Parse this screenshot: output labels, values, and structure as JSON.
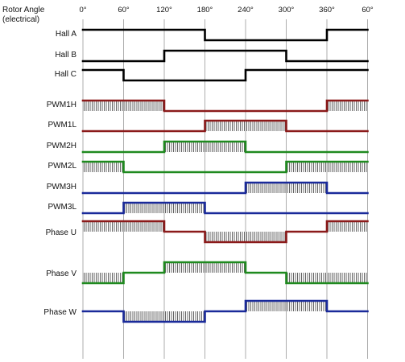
{
  "header": {
    "title_line1": "Rotor Angle",
    "title_line2": "(electrical)"
  },
  "angles": [
    "0°",
    "60°",
    "120°",
    "180°",
    "240°",
    "300°",
    "360°",
    "60°"
  ],
  "colors": {
    "hall": "#000000",
    "phase_u": "#8b1a1a",
    "phase_v": "#1f8a1f",
    "phase_w": "#1a2a9a",
    "grid": "#9a9a9a"
  },
  "signals": [
    {
      "label": "Hall A",
      "color_key": "hall",
      "levels": [
        1,
        1,
        1,
        0,
        0,
        0,
        1
      ],
      "pwm": [
        false,
        false,
        false,
        false,
        false,
        false,
        false
      ]
    },
    {
      "label": "Hall B",
      "color_key": "hall",
      "levels": [
        0,
        0,
        1,
        1,
        1,
        0,
        0
      ],
      "pwm": [
        false,
        false,
        false,
        false,
        false,
        false,
        false
      ]
    },
    {
      "label": "Hall C",
      "color_key": "hall",
      "levels": [
        1,
        0,
        0,
        0,
        1,
        1,
        1
      ],
      "pwm": [
        false,
        false,
        false,
        false,
        false,
        false,
        false
      ]
    },
    {
      "label": "PWM1H",
      "color_key": "phase_u",
      "levels": [
        1,
        1,
        0,
        0,
        0,
        0,
        1
      ],
      "pwm": [
        true,
        true,
        false,
        false,
        false,
        false,
        true
      ]
    },
    {
      "label": "PWM1L",
      "color_key": "phase_u",
      "levels": [
        0,
        0,
        0,
        1,
        1,
        0,
        0
      ],
      "pwm": [
        false,
        false,
        false,
        true,
        true,
        false,
        false
      ]
    },
    {
      "label": "PWM2H",
      "color_key": "phase_v",
      "levels": [
        0,
        0,
        1,
        1,
        0,
        0,
        0
      ],
      "pwm": [
        false,
        false,
        true,
        true,
        false,
        false,
        false
      ]
    },
    {
      "label": "PWM2L",
      "color_key": "phase_v",
      "levels": [
        1,
        0,
        0,
        0,
        0,
        1,
        1
      ],
      "pwm": [
        true,
        false,
        false,
        false,
        false,
        true,
        true
      ]
    },
    {
      "label": "PWM3H",
      "color_key": "phase_w",
      "levels": [
        0,
        0,
        0,
        0,
        1,
        1,
        0
      ],
      "pwm": [
        false,
        false,
        false,
        false,
        true,
        true,
        false
      ]
    },
    {
      "label": "PWM3L",
      "color_key": "phase_w",
      "levels": [
        0,
        1,
        1,
        0,
        0,
        0,
        0
      ],
      "pwm": [
        false,
        true,
        true,
        false,
        false,
        false,
        false
      ]
    },
    {
      "label": "Phase U",
      "color_key": "phase_u",
      "levels": [
        1,
        1,
        0.5,
        -1,
        -1,
        0.5,
        1
      ],
      "pwm": [
        true,
        true,
        false,
        true,
        true,
        false,
        true
      ]
    },
    {
      "label": "Phase V",
      "color_key": "phase_v",
      "levels": [
        -1,
        0.5,
        1,
        1,
        0.5,
        -1,
        -1
      ],
      "pwm": [
        true,
        false,
        true,
        true,
        false,
        true,
        true
      ]
    },
    {
      "label": "Phase W",
      "color_key": "phase_w",
      "levels": [
        0.5,
        -1,
        -1,
        0.5,
        1,
        1,
        0.5
      ],
      "pwm": [
        false,
        true,
        true,
        false,
        true,
        true,
        false
      ]
    }
  ]
}
